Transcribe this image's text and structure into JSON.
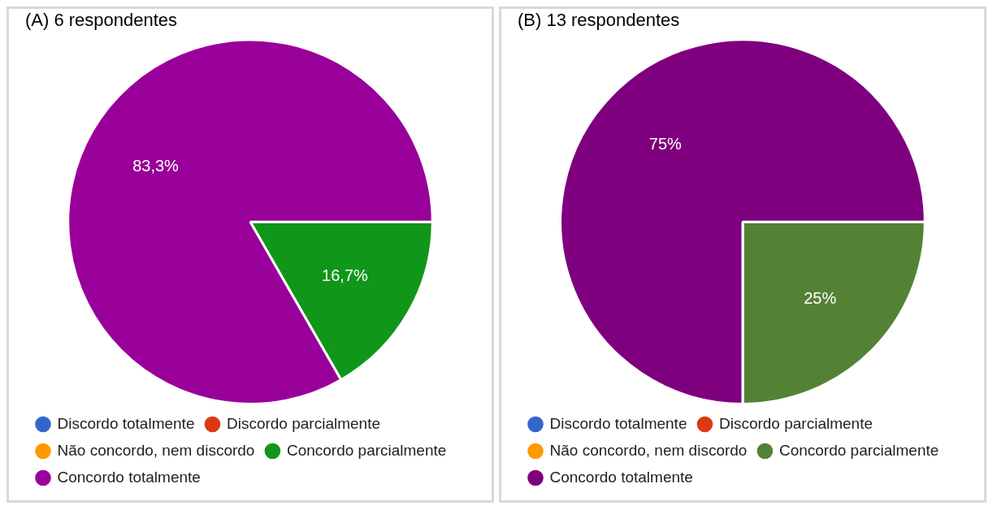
{
  "chart_data": [
    {
      "type": "pie",
      "title": "(A) 6 respondentes",
      "categories": [
        "Discordo totalmente",
        "Discordo parcialmente",
        "Não concordo, nem discordo",
        "Concordo parcialmente",
        "Concordo totalmente"
      ],
      "values": [
        0,
        0,
        0,
        16.7,
        83.3
      ],
      "colors": [
        "#3366cc",
        "#dc3912",
        "#ff9900",
        "#109618",
        "#990099"
      ],
      "value_labels": [
        null,
        null,
        null,
        "16,7%",
        "83,3%"
      ],
      "legend": "bottom left"
    },
    {
      "type": "pie",
      "title": "(B) 13 respondentes",
      "categories": [
        "Discordo totalmente",
        "Discordo parcialmente",
        "Não concordo, nem discordo",
        "Concordo parcialmente",
        "Concordo totalmente"
      ],
      "values": [
        0,
        0,
        0,
        25,
        75
      ],
      "colors": [
        "#3366cc",
        "#dc3912",
        "#ff9900",
        "#548235",
        "#7f007f"
      ],
      "value_labels": [
        null,
        null,
        null,
        "25%",
        "75%"
      ],
      "legend": "bottom left"
    }
  ]
}
